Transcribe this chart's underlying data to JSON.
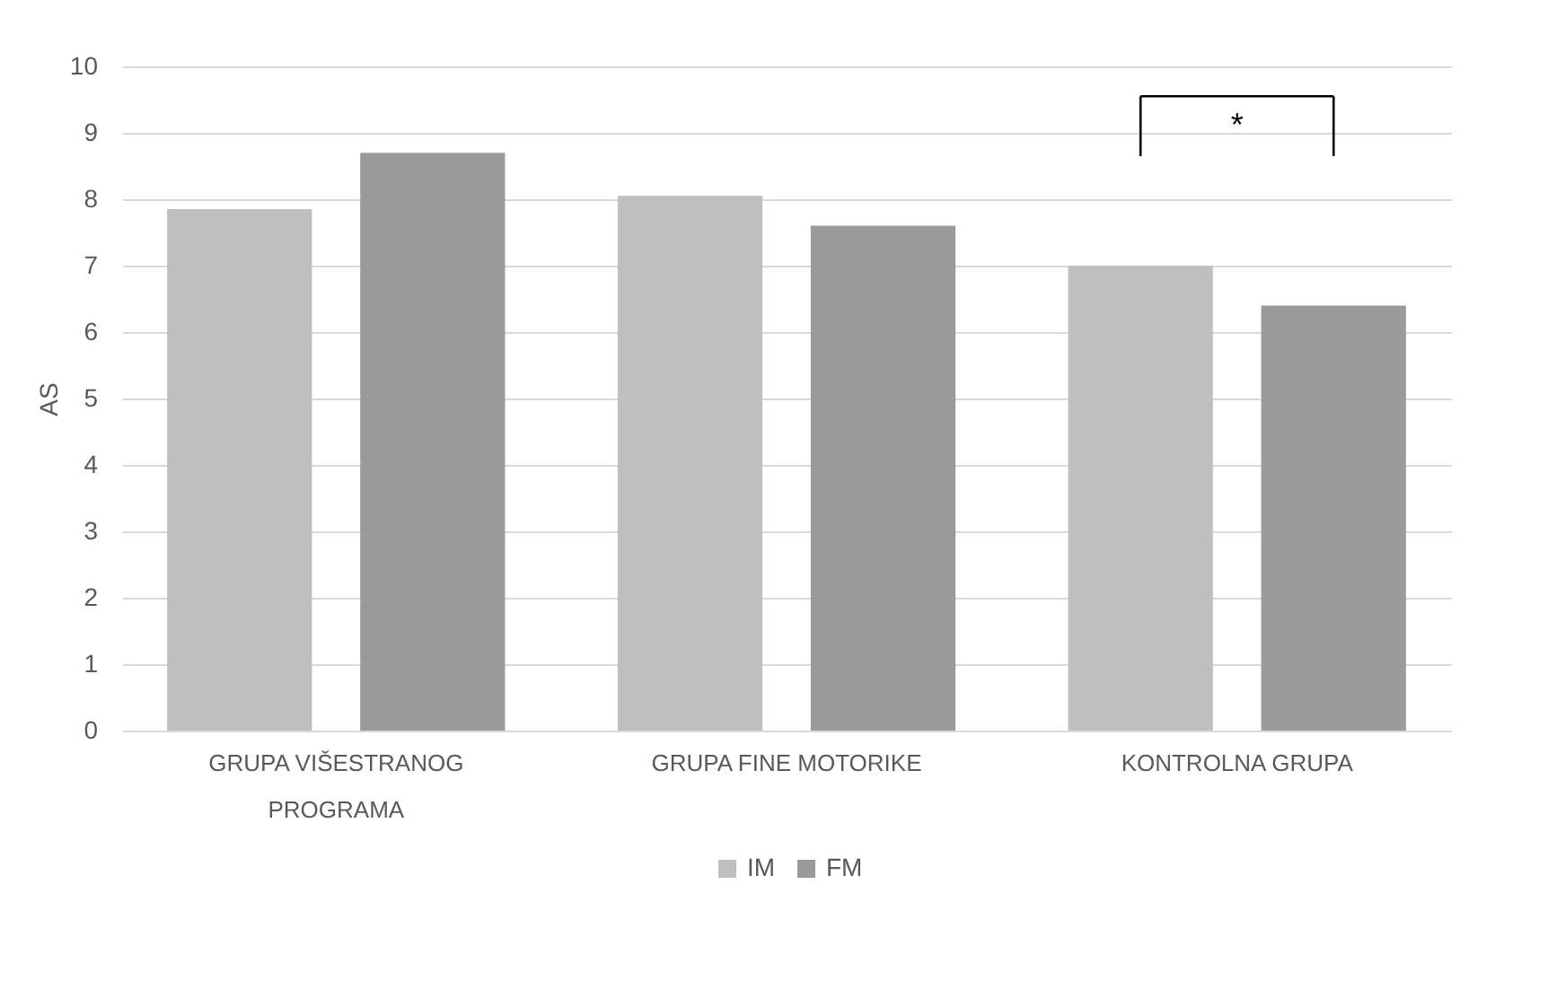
{
  "chart_data": {
    "type": "bar",
    "ylabel": "AS",
    "categories": [
      "GRUPA VIŠESTRANOG PROGRAMA",
      "GRUPA FINE MOTORIKE",
      "KONTROLNA GRUPA"
    ],
    "series": [
      {
        "name": "IM",
        "color": "#bfbfbf",
        "values": [
          7.85,
          8.05,
          7.0
        ]
      },
      {
        "name": "FM",
        "color": "#9a9a9a",
        "values": [
          8.7,
          7.6,
          6.4
        ]
      }
    ],
    "ylim": [
      0,
      10
    ],
    "yticks": [
      0,
      1,
      2,
      3,
      4,
      5,
      6,
      7,
      8,
      9,
      10
    ],
    "grid": "y",
    "legend": "bottom",
    "annotations": [
      "*"
    ]
  }
}
